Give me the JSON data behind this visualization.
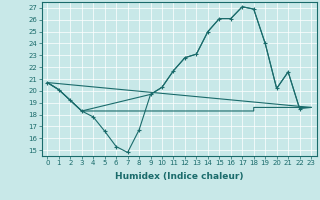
{
  "title": "",
  "xlabel": "Humidex (Indice chaleur)",
  "bg_color": "#c8e8e8",
  "line_color": "#1a6b6b",
  "grid_color": "#ffffff",
  "xlim": [
    -0.5,
    23.5
  ],
  "ylim": [
    14.5,
    27.5
  ],
  "yticks": [
    15,
    16,
    17,
    18,
    19,
    20,
    21,
    22,
    23,
    24,
    25,
    26,
    27
  ],
  "xticks": [
    0,
    1,
    2,
    3,
    4,
    5,
    6,
    7,
    8,
    9,
    10,
    11,
    12,
    13,
    14,
    15,
    16,
    17,
    18,
    19,
    20,
    21,
    22,
    23
  ],
  "series1_x": [
    0,
    1,
    2,
    3,
    4,
    5,
    6,
    7,
    8,
    9,
    10,
    11,
    12,
    13,
    14,
    15,
    16,
    17,
    18,
    19,
    20,
    21,
    22
  ],
  "series1_y": [
    20.7,
    20.1,
    19.2,
    18.3,
    17.8,
    16.6,
    15.3,
    14.8,
    16.7,
    19.7,
    20.3,
    21.7,
    22.8,
    23.1,
    25.0,
    26.1,
    26.1,
    27.1,
    26.9,
    24.0,
    20.2,
    21.6,
    18.5
  ],
  "series2_x": [
    0,
    1,
    2,
    3,
    3,
    7,
    7,
    18,
    18,
    23
  ],
  "series2_y": [
    20.7,
    20.1,
    19.2,
    18.3,
    18.3,
    18.3,
    18.3,
    18.3,
    18.6,
    18.6
  ],
  "series3_x": [
    0,
    23
  ],
  "series3_y": [
    20.7,
    18.6
  ],
  "series4_x": [
    0,
    1,
    2,
    3,
    9,
    10,
    11,
    12,
    13,
    14,
    15,
    16,
    17,
    18,
    19,
    20,
    21,
    22,
    23
  ],
  "series4_y": [
    20.7,
    20.1,
    19.2,
    18.3,
    19.7,
    20.3,
    21.7,
    22.8,
    23.1,
    25.0,
    26.1,
    26.1,
    27.1,
    26.9,
    24.0,
    20.2,
    21.6,
    18.5,
    18.6
  ]
}
